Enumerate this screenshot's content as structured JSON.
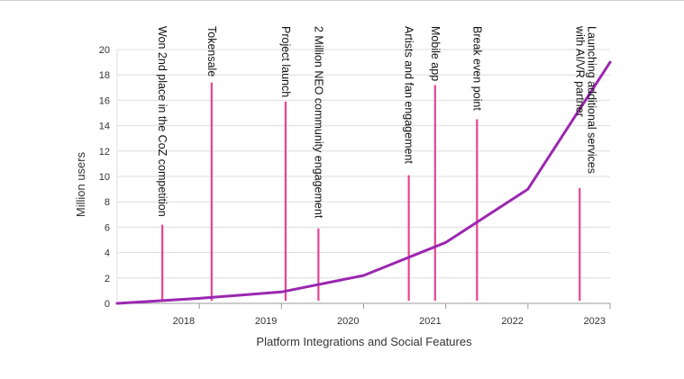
{
  "chart_data": {
    "type": "line",
    "xlabel": "Platform Integrations and Social Features",
    "ylabel": "Million users",
    "xlim": [
      2017,
      2023
    ],
    "ylim": [
      0,
      20
    ],
    "x_ticks": [
      "2018",
      "2019",
      "2020",
      "2021",
      "2022",
      "2023"
    ],
    "y_ticks": [
      "0",
      "2",
      "4",
      "6",
      "8",
      "10",
      "12",
      "14",
      "16",
      "18",
      "20"
    ],
    "grid": "horizontal",
    "series": [
      {
        "color": "#9b27b0",
        "points": [
          {
            "x": 2017.0,
            "y": 0.0
          },
          {
            "x": 2018.0,
            "y": 0.4
          },
          {
            "x": 2019.0,
            "y": 0.9
          },
          {
            "x": 2020.0,
            "y": 2.2
          },
          {
            "x": 2021.0,
            "y": 4.8
          },
          {
            "x": 2022.0,
            "y": 9.0
          },
          {
            "x": 2023.0,
            "y": 19.0
          }
        ]
      }
    ],
    "annotations": [
      {
        "text": "Won 2nd place in the CoZ competition",
        "x": 2017.55,
        "y": 6.2
      },
      {
        "text": "Tokensale",
        "x": 2018.15,
        "y": 17.4
      },
      {
        "text": "Project launch",
        "x": 2019.05,
        "y": 15.9
      },
      {
        "text": "2 Million NEO community engagement",
        "x": 2019.45,
        "y": 5.9
      },
      {
        "text": "Artists and fan engagement",
        "x": 2020.55,
        "y": 10.1
      },
      {
        "text": "Mobile app",
        "x": 2020.87,
        "y": 17.2
      },
      {
        "text": "Break even point",
        "x": 2021.38,
        "y": 14.5
      },
      {
        "text": "Launching  additional services\nwith AI/VR partner",
        "x": 2022.63,
        "y": 9.1
      }
    ],
    "annotation_color": "#e84393"
  }
}
